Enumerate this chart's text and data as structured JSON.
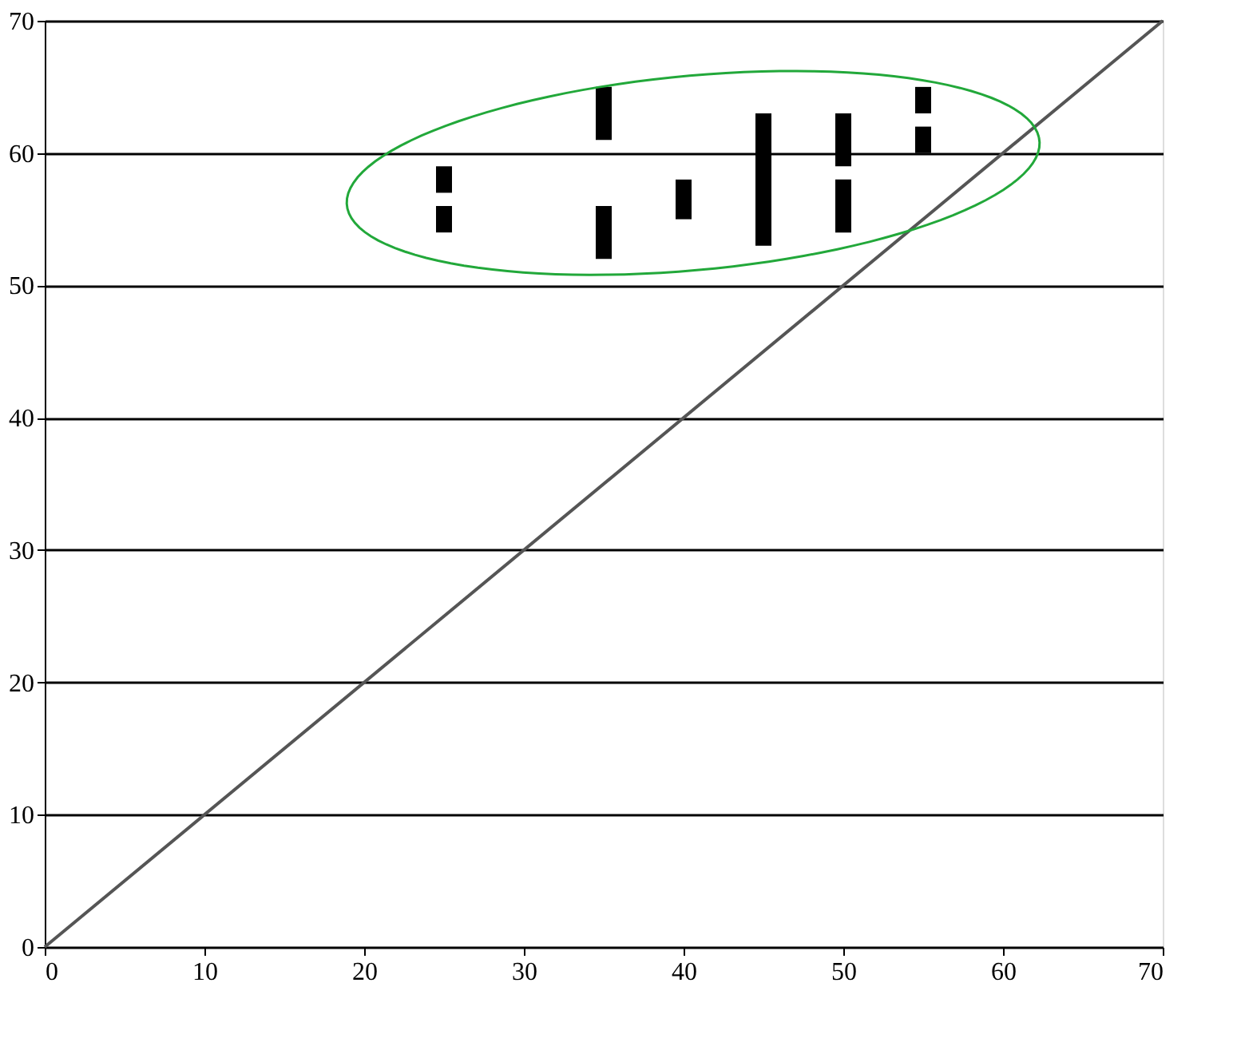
{
  "chart_data": {
    "type": "bar",
    "xlim": [
      0,
      70
    ],
    "ylim": [
      0,
      70
    ],
    "xticks": [
      0,
      10,
      20,
      30,
      40,
      50,
      60,
      70
    ],
    "yticks": [
      0,
      10,
      20,
      30,
      40,
      50,
      60,
      70
    ],
    "grid": "y",
    "series": [
      {
        "color": "#000000",
        "x": [
          25,
          35,
          40,
          45,
          50,
          55
        ],
        "base": [
          57,
          61,
          55,
          53,
          59,
          63
        ],
        "values": [
          2,
          4,
          3,
          10,
          4,
          2
        ]
      },
      {
        "color": "#000000",
        "x": [
          25,
          35,
          50,
          55
        ],
        "base": [
          54,
          52,
          54,
          60
        ],
        "values": [
          2,
          4,
          4,
          2
        ]
      },
      {
        "type": "line",
        "color": "#555555",
        "x": [
          0,
          70
        ],
        "values": [
          0,
          70
        ]
      }
    ]
  }
}
